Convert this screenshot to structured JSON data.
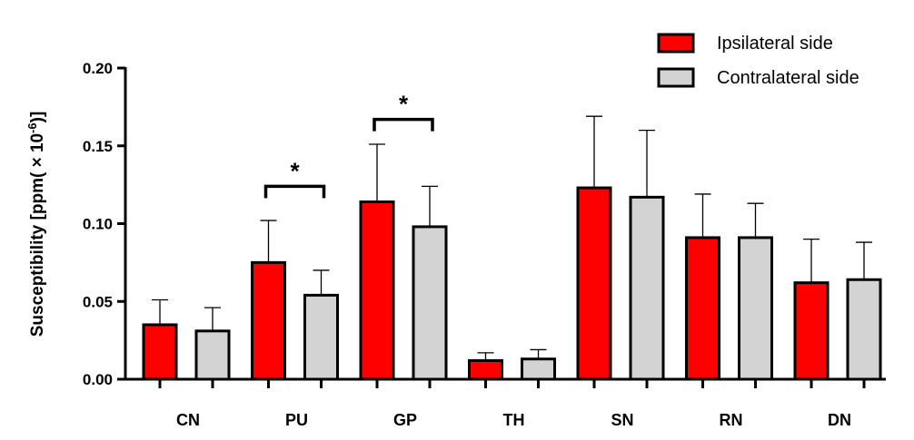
{
  "chart_data": {
    "type": "bar",
    "title": "",
    "xlabel": "",
    "ylabel": "Susceptibility [ppm( × 10",
    "ylabel_exponent": "-6",
    "ylabel_suffix": ")]",
    "ylim": [
      0,
      0.2
    ],
    "yticks": [
      "0.00",
      "0.05",
      "0.10",
      "0.15",
      "0.20"
    ],
    "ytick_values": [
      0,
      0.05,
      0.1,
      0.15,
      0.2
    ],
    "categories": [
      "CN",
      "PU",
      "GP",
      "TH",
      "SN",
      "RN",
      "DN"
    ],
    "series": [
      {
        "name": "Ipsilateral side",
        "color": "#ff0000",
        "values": [
          0.035,
          0.075,
          0.114,
          0.012,
          0.123,
          0.091,
          0.062
        ],
        "error_upper": [
          0.051,
          0.102,
          0.151,
          0.017,
          0.169,
          0.119,
          0.09
        ]
      },
      {
        "name": "Contralateral side",
        "color": "#d3d3d3",
        "values": [
          0.031,
          0.054,
          0.098,
          0.013,
          0.117,
          0.091,
          0.064
        ],
        "error_upper": [
          0.046,
          0.07,
          0.124,
          0.019,
          0.16,
          0.113,
          0.088
        ]
      }
    ],
    "legend_position": "top-right",
    "annotations": [
      {
        "category": "PU",
        "text": "*",
        "level": 0.124
      },
      {
        "category": "GP",
        "text": "*",
        "level": 0.167
      }
    ]
  }
}
